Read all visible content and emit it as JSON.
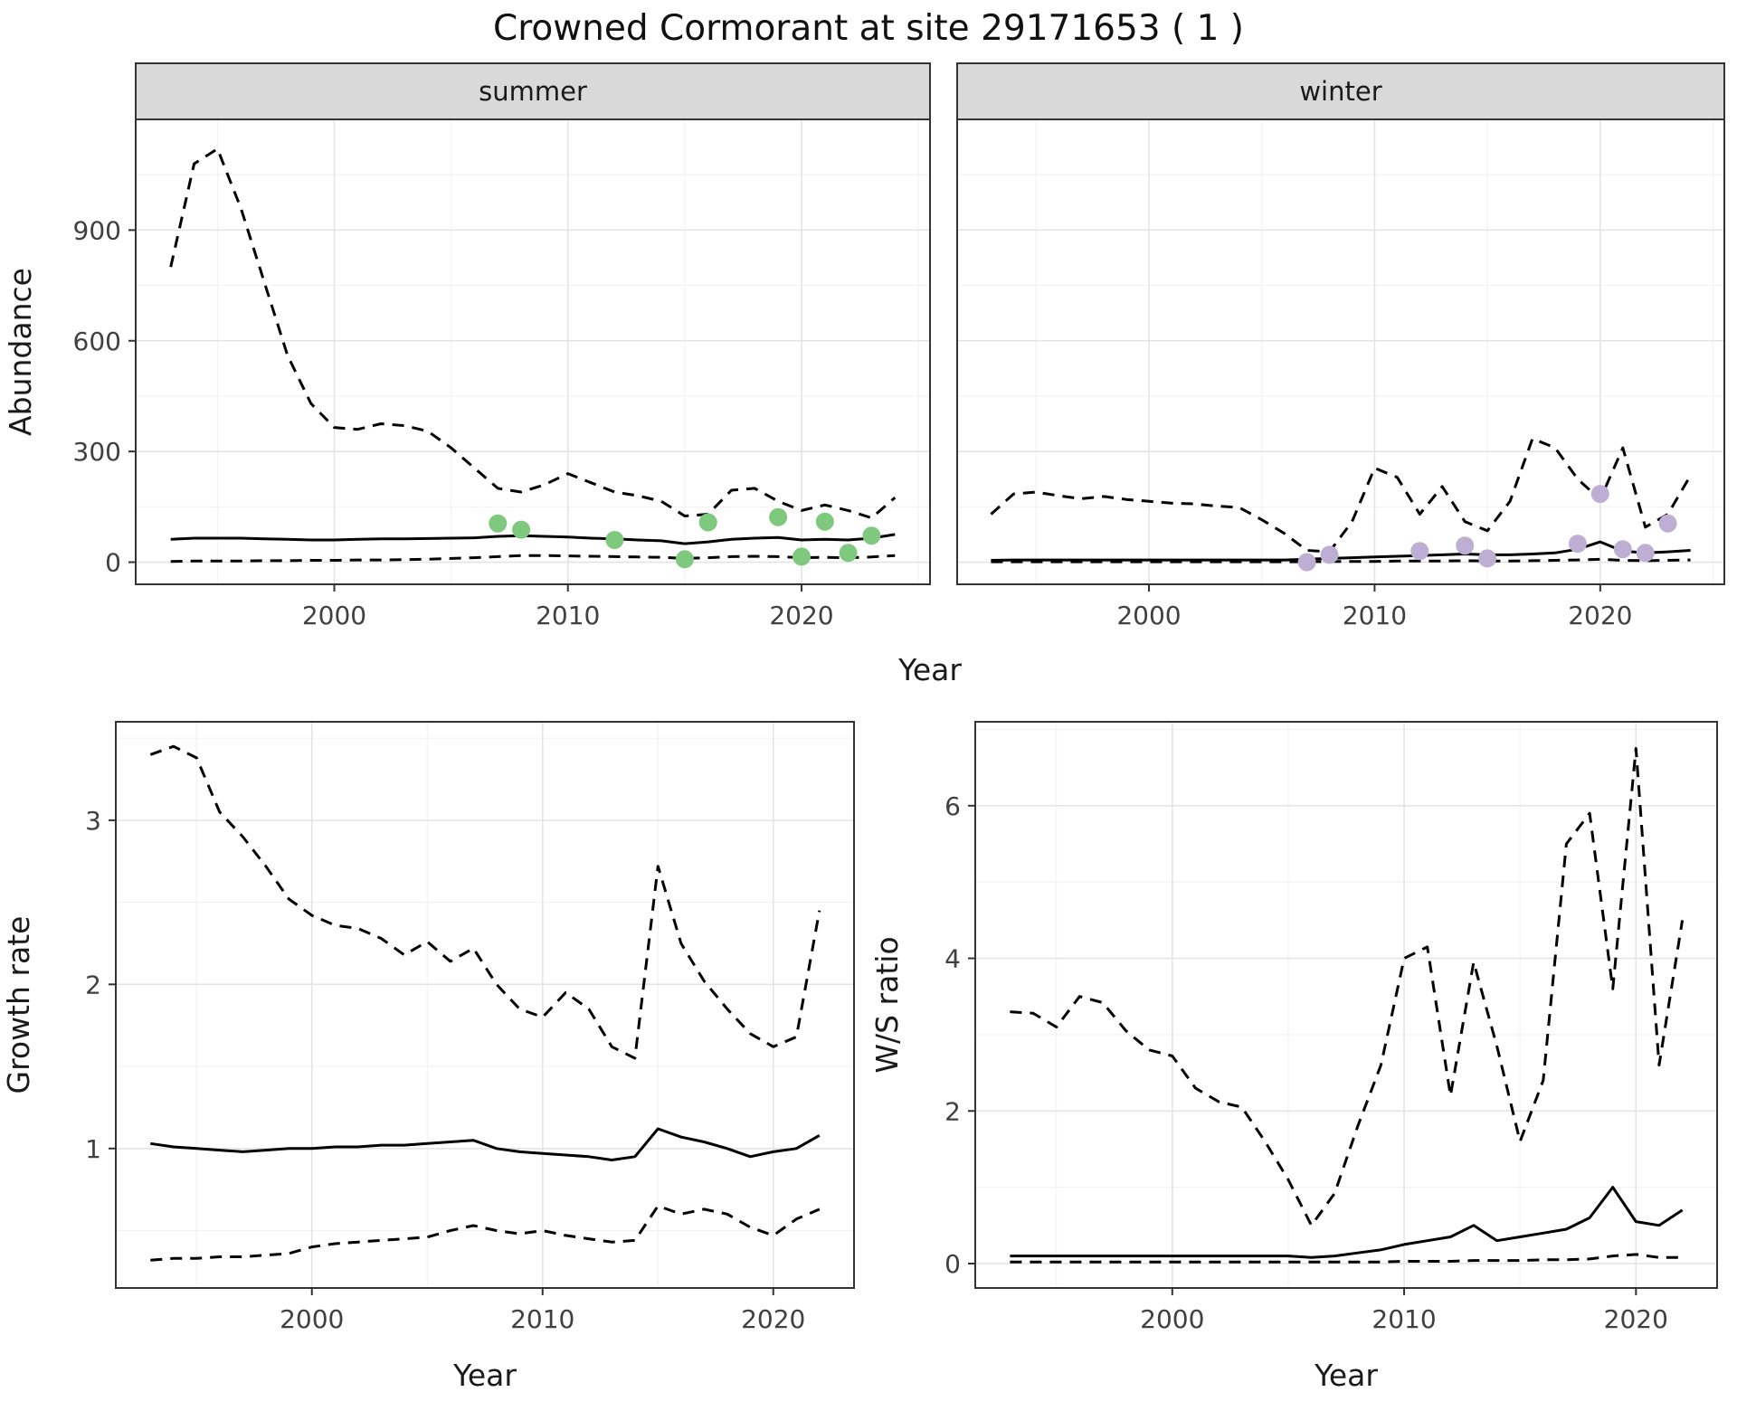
{
  "title": "Crowned Cormorant at site 29171653 ( 1 )",
  "colors": {
    "summer_point": "#7fc97f",
    "winter_point": "#beaed4",
    "line": "#000000",
    "strip_bg": "#d9d9d9",
    "panel_border": "#333333",
    "grid_major": "#e4e4e4",
    "grid_minor": "#f2f2f2",
    "tick_text": "#404040",
    "title_text": "#111111"
  },
  "chart_data": [
    {
      "id": "abundance",
      "type": "line",
      "xlabel": "Year",
      "ylabel": "Abundance",
      "xlim": [
        1991.5,
        2025.5
      ],
      "ylim": [
        -60,
        1200
      ],
      "xticks": [
        2000,
        2010,
        2020
      ],
      "yticks": [
        0,
        300,
        600,
        900
      ],
      "grid": true,
      "x": [
        1993,
        1994,
        1995,
        1996,
        1997,
        1998,
        1999,
        2000,
        2001,
        2002,
        2003,
        2004,
        2005,
        2006,
        2007,
        2008,
        2009,
        2010,
        2011,
        2012,
        2013,
        2014,
        2015,
        2016,
        2017,
        2018,
        2019,
        2020,
        2021,
        2022,
        2023,
        2024
      ],
      "facets": [
        {
          "label": "summer",
          "series": [
            {
              "name": "upper-ci",
              "style": "dashed",
              "values": [
                800,
                1080,
                1120,
                960,
                760,
                560,
                430,
                365,
                360,
                375,
                370,
                355,
                310,
                255,
                200,
                190,
                210,
                240,
                215,
                190,
                180,
                165,
                125,
                130,
                195,
                200,
                165,
                140,
                155,
                140,
                120,
                175
              ]
            },
            {
              "name": "median",
              "style": "solid",
              "values": [
                62,
                65,
                65,
                65,
                63,
                62,
                60,
                60,
                62,
                63,
                63,
                64,
                65,
                66,
                70,
                72,
                70,
                68,
                65,
                63,
                60,
                58,
                50,
                55,
                62,
                65,
                67,
                60,
                62,
                60,
                65,
                75
              ]
            },
            {
              "name": "lower-ci",
              "style": "dashed",
              "values": [
                2,
                3,
                3,
                3,
                4,
                4,
                5,
                5,
                6,
                6,
                7,
                8,
                10,
                12,
                15,
                18,
                18,
                17,
                16,
                15,
                14,
                13,
                10,
                12,
                15,
                16,
                15,
                12,
                13,
                12,
                14,
                18
              ]
            }
          ],
          "points": {
            "name": "observed-counts",
            "color_key": "summer_point",
            "x": [
              2007,
              2008,
              2012,
              2015,
              2016,
              2019,
              2020,
              2021,
              2022,
              2023
            ],
            "y": [
              105,
              88,
              60,
              8,
              108,
              122,
              15,
              110,
              25,
              72
            ]
          }
        },
        {
          "label": "winter",
          "series": [
            {
              "name": "upper-ci",
              "style": "dashed",
              "values": [
                130,
                185,
                190,
                180,
                172,
                178,
                170,
                165,
                160,
                158,
                152,
                148,
                115,
                78,
                32,
                28,
                110,
                255,
                230,
                130,
                205,
                110,
                85,
                165,
                335,
                310,
                225,
                170,
                310,
                95,
                130,
                235
              ]
            },
            {
              "name": "median",
              "style": "solid",
              "values": [
                5,
                6,
                6,
                6,
                6,
                6,
                6,
                6,
                6,
                6,
                6,
                6,
                6,
                6,
                8,
                10,
                12,
                14,
                16,
                18,
                20,
                22,
                20,
                20,
                22,
                25,
                35,
                55,
                30,
                25,
                28,
                32
              ]
            },
            {
              "name": "lower-ci",
              "style": "dashed",
              "values": [
                1,
                1,
                1,
                1,
                1,
                1,
                1,
                1,
                1,
                1,
                1,
                1,
                1,
                1,
                1,
                2,
                2,
                2,
                3,
                3,
                3,
                4,
                3,
                3,
                4,
                5,
                6,
                8,
                5,
                4,
                5,
                6
              ]
            }
          ],
          "points": {
            "name": "observed-counts",
            "color_key": "winter_point",
            "x": [
              2007,
              2008,
              2012,
              2014,
              2015,
              2019,
              2020,
              2021,
              2022,
              2023
            ],
            "y": [
              0,
              20,
              30,
              45,
              10,
              50,
              185,
              35,
              25,
              105
            ]
          }
        }
      ]
    },
    {
      "id": "growth-rate",
      "type": "line",
      "xlabel": "Year",
      "ylabel": "Growth rate",
      "xlim": [
        1991.5,
        2023.5
      ],
      "ylim": [
        0.15,
        3.6
      ],
      "xticks": [
        2000,
        2010,
        2020
      ],
      "yticks": [
        1,
        2,
        3
      ],
      "grid": true,
      "x": [
        1993,
        1994,
        1995,
        1996,
        1997,
        1998,
        1999,
        2000,
        2001,
        2002,
        2003,
        2004,
        2005,
        2006,
        2007,
        2008,
        2009,
        2010,
        2011,
        2012,
        2013,
        2014,
        2015,
        2016,
        2017,
        2018,
        2019,
        2020,
        2021,
        2022
      ],
      "facets": [
        {
          "label": null,
          "series": [
            {
              "name": "upper-ci",
              "style": "dashed",
              "values": [
                3.4,
                3.45,
                3.38,
                3.05,
                2.9,
                2.72,
                2.52,
                2.42,
                2.36,
                2.34,
                2.28,
                2.18,
                2.26,
                2.14,
                2.22,
                2.0,
                1.85,
                1.8,
                1.95,
                1.85,
                1.62,
                1.55,
                2.72,
                2.25,
                2.02,
                1.85,
                1.7,
                1.62,
                1.68,
                2.45
              ]
            },
            {
              "name": "median",
              "style": "solid",
              "values": [
                1.03,
                1.01,
                1.0,
                0.99,
                0.98,
                0.99,
                1.0,
                1.0,
                1.01,
                1.01,
                1.02,
                1.02,
                1.03,
                1.04,
                1.05,
                1.0,
                0.98,
                0.97,
                0.96,
                0.95,
                0.93,
                0.95,
                1.12,
                1.07,
                1.04,
                1.0,
                0.95,
                0.98,
                1.0,
                1.08
              ]
            },
            {
              "name": "lower-ci",
              "style": "dashed",
              "values": [
                0.32,
                0.33,
                0.33,
                0.34,
                0.34,
                0.35,
                0.36,
                0.4,
                0.42,
                0.43,
                0.44,
                0.45,
                0.46,
                0.5,
                0.53,
                0.5,
                0.48,
                0.5,
                0.47,
                0.45,
                0.43,
                0.44,
                0.65,
                0.6,
                0.63,
                0.6,
                0.52,
                0.47,
                0.57,
                0.63
              ]
            }
          ]
        }
      ]
    },
    {
      "id": "ws-ratio",
      "type": "line",
      "xlabel": "Year",
      "ylabel": "W/S ratio",
      "xlim": [
        1991.5,
        2023.5
      ],
      "ylim": [
        -0.32,
        7.1
      ],
      "xticks": [
        2000,
        2010,
        2020
      ],
      "yticks": [
        0,
        2,
        4,
        6
      ],
      "grid": true,
      "x": [
        1993,
        1994,
        1995,
        1996,
        1997,
        1998,
        1999,
        2000,
        2001,
        2002,
        2003,
        2004,
        2005,
        2006,
        2007,
        2008,
        2009,
        2010,
        2011,
        2012,
        2013,
        2014,
        2015,
        2016,
        2017,
        2018,
        2019,
        2020,
        2021,
        2022
      ],
      "facets": [
        {
          "label": null,
          "series": [
            {
              "name": "upper-ci",
              "style": "dashed",
              "values": [
                3.3,
                3.28,
                3.1,
                3.5,
                3.42,
                3.05,
                2.8,
                2.72,
                2.3,
                2.12,
                2.05,
                1.6,
                1.1,
                0.5,
                0.92,
                1.8,
                2.6,
                4.0,
                4.15,
                2.2,
                3.95,
                2.85,
                1.6,
                2.4,
                5.5,
                5.9,
                3.6,
                6.75,
                2.6,
                4.5
              ]
            },
            {
              "name": "median",
              "style": "solid",
              "values": [
                0.1,
                0.1,
                0.1,
                0.1,
                0.1,
                0.1,
                0.1,
                0.1,
                0.1,
                0.1,
                0.1,
                0.1,
                0.1,
                0.08,
                0.1,
                0.14,
                0.18,
                0.25,
                0.3,
                0.35,
                0.5,
                0.3,
                0.35,
                0.4,
                0.45,
                0.6,
                1.0,
                0.55,
                0.5,
                0.7
              ]
            },
            {
              "name": "lower-ci",
              "style": "dashed",
              "values": [
                0.02,
                0.02,
                0.02,
                0.02,
                0.02,
                0.02,
                0.02,
                0.02,
                0.02,
                0.02,
                0.02,
                0.02,
                0.02,
                0.02,
                0.02,
                0.02,
                0.02,
                0.03,
                0.03,
                0.03,
                0.04,
                0.04,
                0.04,
                0.05,
                0.05,
                0.06,
                0.1,
                0.12,
                0.08,
                0.08
              ]
            }
          ]
        }
      ]
    }
  ]
}
